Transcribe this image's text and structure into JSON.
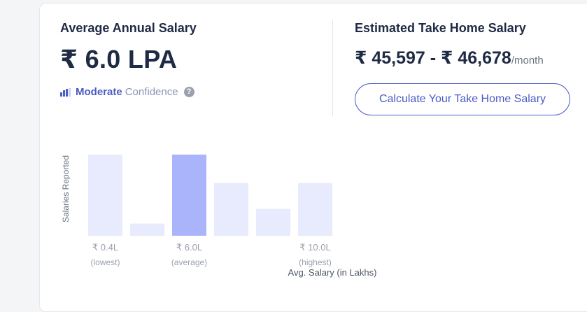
{
  "average": {
    "title": "Average Annual Salary",
    "value": "₹ 6.0 LPA",
    "confidence_level": "Moderate",
    "confidence_text": "Confidence"
  },
  "take_home": {
    "title": "Estimated Take Home Salary",
    "range": "₹ 45,597 - ₹ 46,678",
    "unit": "/month",
    "button_label": "Calculate Your Take Home Salary"
  },
  "colors": {
    "accent": "#4b5cc4",
    "bar": "#e8eafd",
    "bar_highlight": "#a9b4fb"
  },
  "chart_data": {
    "type": "bar",
    "ylabel": "Salaries Reported",
    "xlabel": "Avg. Salary (in Lakhs)",
    "values": [
      100,
      15,
      100,
      65,
      33,
      65
    ],
    "highlight_index": 2,
    "tick_labels": [
      {
        "index": 0,
        "label": "₹ 0.4L",
        "sub": "(lowest)"
      },
      {
        "index": 2,
        "label": "₹ 6.0L",
        "sub": "(average)"
      },
      {
        "index": 5,
        "label": "₹ 10.0L",
        "sub": "(highest)"
      }
    ],
    "ylim": [
      0,
      100
    ]
  }
}
